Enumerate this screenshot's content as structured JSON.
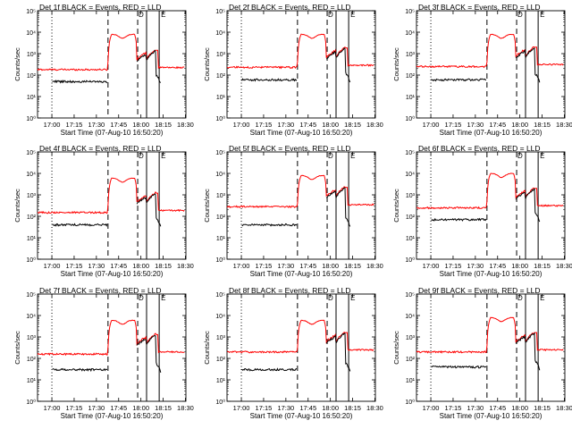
{
  "figure": {
    "xlabel": "Start Time (07-Aug-10 16:50:20)",
    "ylabel": "Counts/sec",
    "x_tick_labels": [
      "17:00",
      "17:15",
      "17:30",
      "17:45",
      "18:00",
      "18:15",
      "18:30"
    ],
    "y_tick_labels": [
      "10⁰",
      "10¹",
      "10²",
      "10³",
      "10⁴",
      "10⁵"
    ],
    "marker_labels": [
      "D",
      "E"
    ],
    "colors": {
      "events": "#000000",
      "lld": "#ff0000",
      "axes": "#000000"
    }
  },
  "chart_data": [
    {
      "type": "line",
      "title": "Det 1f BLACK = Events, RED = LLD",
      "x_unit": "minutes after 16:50:20",
      "ylim": [
        1,
        100000
      ],
      "log_y": true,
      "baseline": {
        "events": 50,
        "lld": 180
      },
      "peak": {
        "events": 8000,
        "lld": 8000
      }
    },
    {
      "type": "line",
      "title": "Det 2f BLACK = Events, RED = LLD",
      "x_unit": "minutes after 16:50:20",
      "ylim": [
        1,
        100000
      ],
      "log_y": true,
      "baseline": {
        "events": 60,
        "lld": 230
      },
      "peak": {
        "events": 8000,
        "lld": 8000
      }
    },
    {
      "type": "line",
      "title": "Det 3f BLACK = Events, RED = LLD",
      "x_unit": "minutes after 16:50:20",
      "ylim": [
        1,
        100000
      ],
      "log_y": true,
      "baseline": {
        "events": 60,
        "lld": 250
      },
      "peak": {
        "events": 8000,
        "lld": 8000
      }
    },
    {
      "type": "line",
      "title": "Det 4f BLACK = Events, RED = LLD",
      "x_unit": "minutes after 16:50:20",
      "ylim": [
        1,
        100000
      ],
      "log_y": true,
      "baseline": {
        "events": 40,
        "lld": 150
      },
      "peak": {
        "events": 6000,
        "lld": 6000
      }
    },
    {
      "type": "line",
      "title": "Det 5f BLACK = Events, RED = LLD",
      "x_unit": "minutes after 16:50:20",
      "ylim": [
        1,
        100000
      ],
      "log_y": true,
      "baseline": {
        "events": 40,
        "lld": 280
      },
      "peak": {
        "events": 8000,
        "lld": 8000
      }
    },
    {
      "type": "line",
      "title": "Det 6f BLACK = Events, RED = LLD",
      "x_unit": "minutes after 16:50:20",
      "ylim": [
        1,
        100000
      ],
      "log_y": true,
      "baseline": {
        "events": 70,
        "lld": 250
      },
      "peak": {
        "events": 10000,
        "lld": 10000
      }
    },
    {
      "type": "line",
      "title": "Det 7f BLACK = Events, RED = LLD",
      "x_unit": "minutes after 16:50:20",
      "ylim": [
        1,
        100000
      ],
      "log_y": true,
      "baseline": {
        "events": 30,
        "lld": 160
      },
      "peak": {
        "events": 6000,
        "lld": 6000
      }
    },
    {
      "type": "line",
      "title": "Det 8f BLACK = Events, RED = LLD",
      "x_unit": "minutes after 16:50:20",
      "ylim": [
        1,
        100000
      ],
      "log_y": true,
      "baseline": {
        "events": 30,
        "lld": 200
      },
      "peak": {
        "events": 6000,
        "lld": 6000
      }
    },
    {
      "type": "line",
      "title": "Det 9f BLACK = Events, RED = LLD",
      "x_unit": "minutes after 16:50:20",
      "ylim": [
        1,
        100000
      ],
      "log_y": true,
      "baseline": {
        "events": 40,
        "lld": 200
      },
      "peak": {
        "events": 8000,
        "lld": 8000
      }
    }
  ]
}
